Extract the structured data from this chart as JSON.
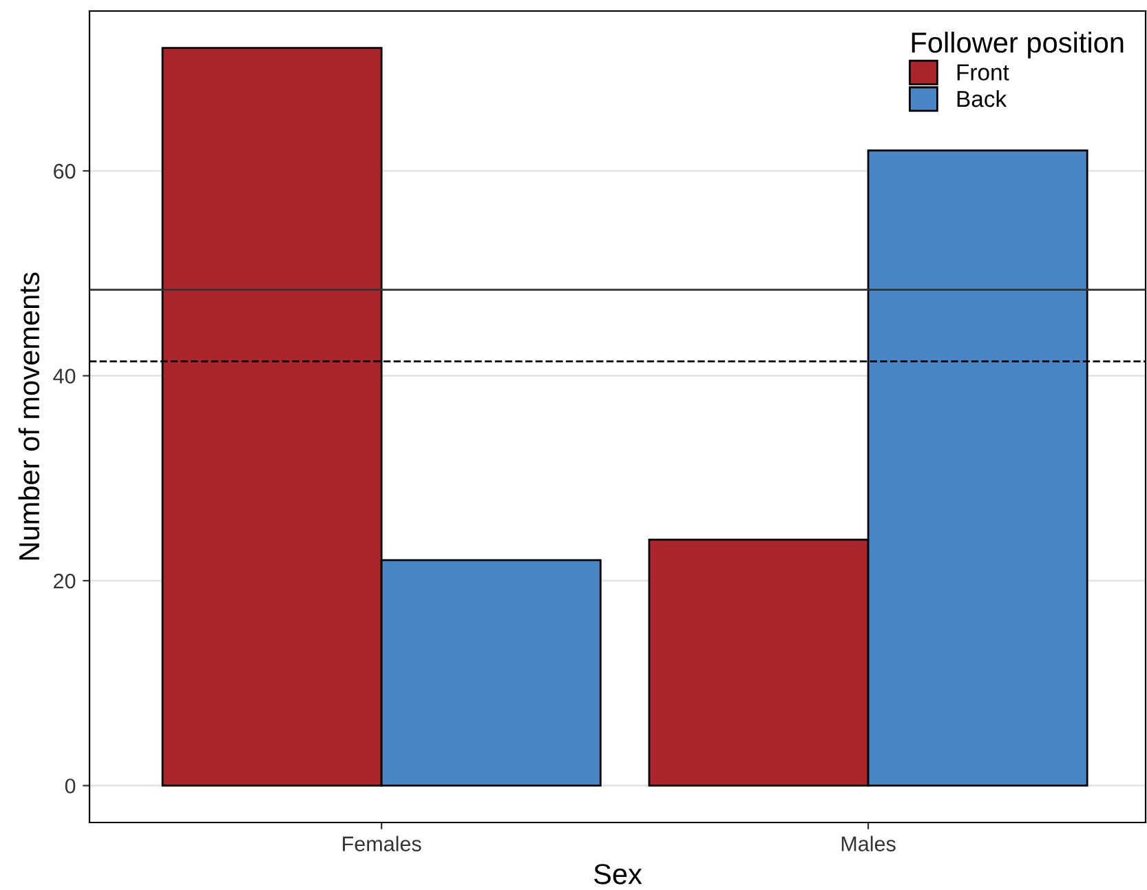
{
  "chart_data": {
    "type": "bar",
    "xlabel": "Sex",
    "ylabel": "Number of movements",
    "legend_title": "Follower position",
    "categories": [
      "Females",
      "Males"
    ],
    "series": [
      {
        "name": "Front",
        "color": "#ab252c",
        "values": [
          72,
          24
        ]
      },
      {
        "name": "Back",
        "color": "#4a86c5",
        "values": [
          22,
          62
        ]
      }
    ],
    "ylim": [
      -3.6,
      75.6
    ],
    "yticks": [
      0,
      20,
      40,
      60
    ],
    "grid": "y",
    "legend": "top right",
    "ref_lines": [
      {
        "axis": "y",
        "value": 48.4,
        "line_style": "solid",
        "color": "#333333"
      },
      {
        "axis": "y",
        "value": 41.4,
        "line_style": "dashed",
        "color": "#000000"
      }
    ]
  }
}
